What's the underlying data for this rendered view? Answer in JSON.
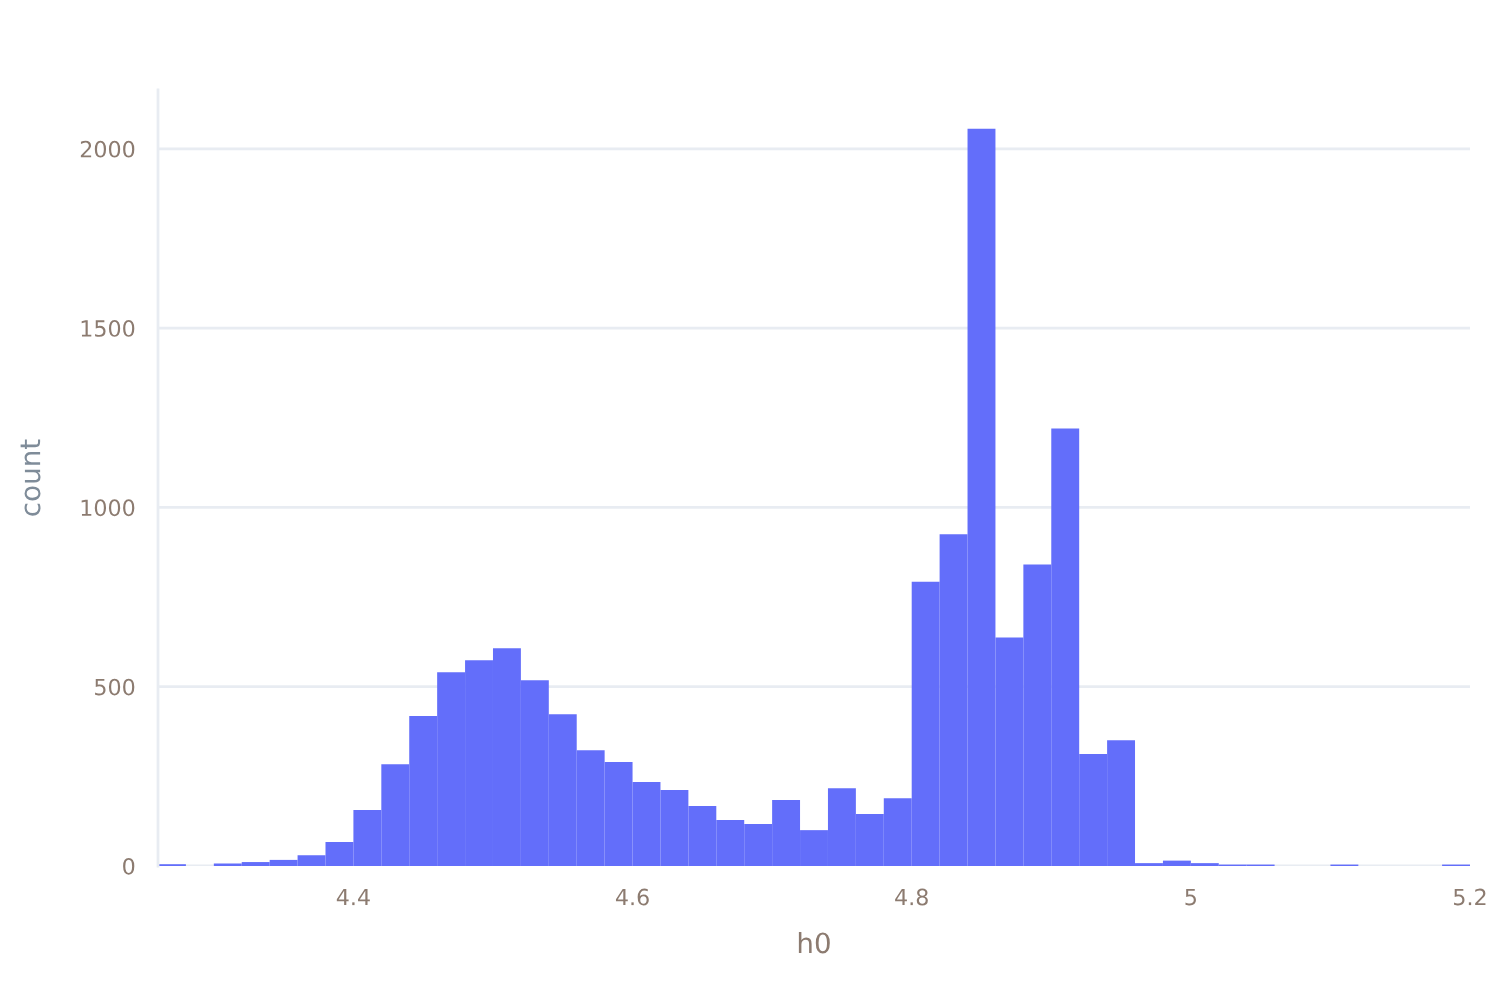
{
  "chart_data": {
    "type": "histogram",
    "xlabel": "h0",
    "ylabel": "count",
    "color": "#636efa",
    "bins": [
      4.26,
      4.28,
      4.3,
      4.32,
      4.34,
      4.36,
      4.38,
      4.4,
      4.42,
      4.44,
      4.46,
      4.48,
      4.5,
      4.52,
      4.54,
      4.56,
      4.58,
      4.6,
      4.62,
      4.64,
      4.66,
      4.68,
      4.7,
      4.72,
      4.74,
      4.76,
      4.78,
      4.8,
      4.82,
      4.84,
      4.86,
      4.88,
      4.9,
      4.92,
      4.94,
      4.96,
      4.98,
      5.0,
      5.02,
      5.04,
      5.06,
      5.08,
      5.1,
      5.12,
      5.14,
      5.16,
      5.18,
      5.2
    ],
    "values": [
      5,
      0,
      7,
      11,
      17,
      30,
      67,
      156,
      284,
      418,
      540,
      574,
      607,
      518,
      423,
      323,
      290,
      234,
      212,
      167,
      128,
      117,
      184,
      100,
      217,
      145,
      189,
      793,
      925,
      2056,
      637,
      841,
      1220,
      312,
      351,
      8,
      15,
      8,
      4,
      4,
      0,
      0,
      4,
      0,
      0,
      0,
      4
    ],
    "xlim": [
      4.26,
      5.2
    ],
    "xticks": [
      4.4,
      4.6,
      4.8,
      5,
      5.2
    ],
    "ylim": [
      0,
      2164
    ],
    "yticks": [
      0,
      500,
      1000,
      1500,
      2000
    ],
    "grid": "y"
  }
}
